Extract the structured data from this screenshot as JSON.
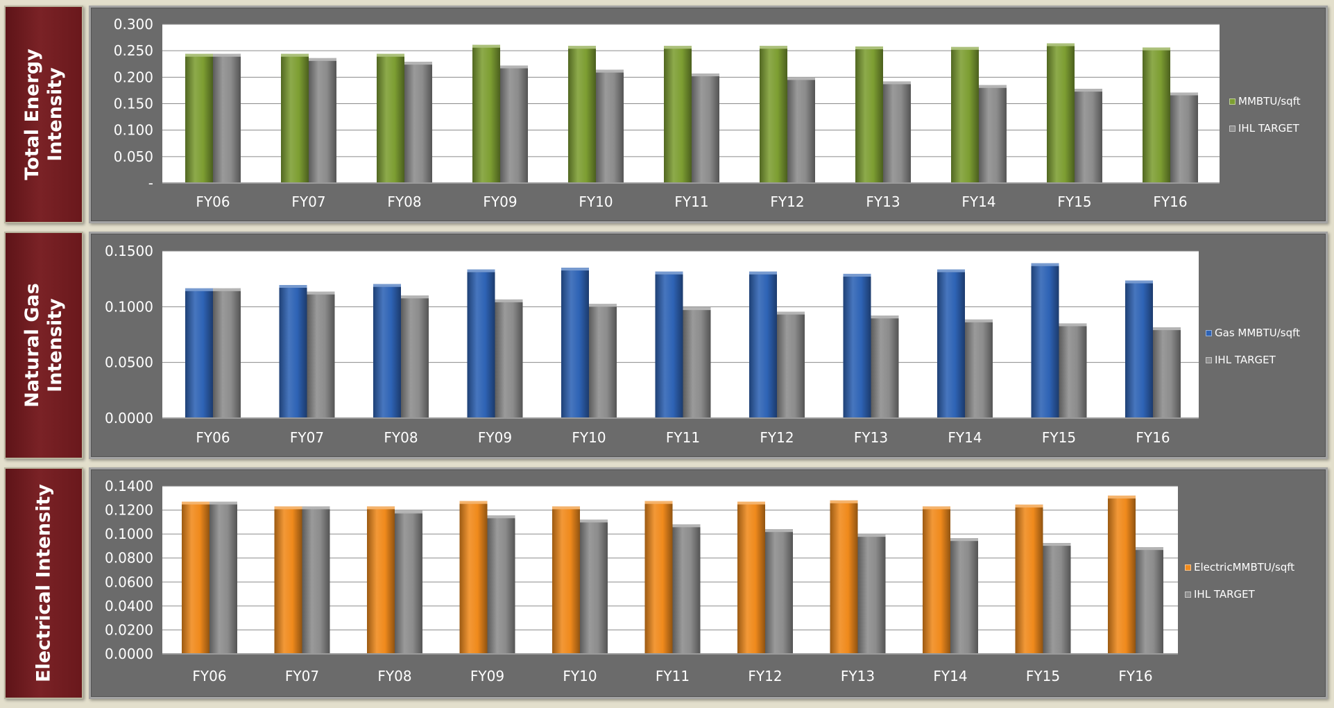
{
  "colors": {
    "background": "#e3dfcc",
    "title_box": "#6a181c",
    "panel": "#6b6b6b",
    "plot_area": "#ffffff",
    "target_series": "#8c8c8c"
  },
  "chart_data": [
    {
      "type": "bar",
      "side_title": [
        "Total Energy",
        "Intensity"
      ],
      "categories": [
        "FY06",
        "FY07",
        "FY08",
        "FY09",
        "FY10",
        "FY11",
        "FY12",
        "FY13",
        "FY14",
        "FY15",
        "FY16"
      ],
      "series": [
        {
          "name": "MMBTU/sqft",
          "color": "#7d9e32",
          "values": [
            0.244,
            0.244,
            0.244,
            0.261,
            0.259,
            0.259,
            0.259,
            0.258,
            0.257,
            0.264,
            0.256
          ]
        },
        {
          "name": "IHL TARGET",
          "color": "#8c8c8c",
          "values": [
            0.244,
            0.236,
            0.229,
            0.222,
            0.214,
            0.207,
            0.2,
            0.192,
            0.185,
            0.178,
            0.171
          ]
        }
      ],
      "yticks": [
        "-",
        "0.050",
        "0.100",
        "0.150",
        "0.200",
        "0.250",
        "0.300"
      ],
      "ylim": [
        0,
        0.3
      ],
      "grid": true,
      "legend_position": "right"
    },
    {
      "type": "bar",
      "side_title": [
        "Natural Gas",
        "Intensity"
      ],
      "categories": [
        "FY06",
        "FY07",
        "FY08",
        "FY09",
        "FY10",
        "FY11",
        "FY12",
        "FY13",
        "FY14",
        "FY15",
        "FY16"
      ],
      "series": [
        {
          "name": "Gas MMBTU/sqft",
          "color": "#2e63b5",
          "values": [
            0.1165,
            0.1195,
            0.1203,
            0.1335,
            0.135,
            0.1315,
            0.1315,
            0.1295,
            0.1335,
            0.139,
            0.1235
          ]
        },
        {
          "name": "IHL TARGET",
          "color": "#8c8c8c",
          "values": [
            0.1165,
            0.1135,
            0.11,
            0.1065,
            0.1025,
            0.0995,
            0.0955,
            0.092,
            0.0885,
            0.085,
            0.0815
          ]
        }
      ],
      "yticks": [
        "0.0000",
        "0.0500",
        "0.1000",
        "0.1500"
      ],
      "ylim": [
        0,
        0.15
      ],
      "grid": true,
      "legend_position": "right"
    },
    {
      "type": "bar",
      "side_title": [
        "Electrical  Intensity"
      ],
      "categories": [
        "FY06",
        "FY07",
        "FY08",
        "FY09",
        "FY10",
        "FY11",
        "FY12",
        "FY13",
        "FY14",
        "FY15",
        "FY16"
      ],
      "series": [
        {
          "name": "ElectricMMBTU/sqft",
          "color": "#f08a1c",
          "values": [
            0.127,
            0.123,
            0.123,
            0.1275,
            0.123,
            0.1275,
            0.127,
            0.128,
            0.123,
            0.1245,
            0.132
          ]
        },
        {
          "name": "IHL TARGET",
          "color": "#8c8c8c",
          "values": [
            0.127,
            0.123,
            0.1195,
            0.1155,
            0.112,
            0.108,
            0.104,
            0.1,
            0.0965,
            0.0925,
            0.089
          ]
        }
      ],
      "yticks": [
        "0.0000",
        "0.0200",
        "0.0400",
        "0.0600",
        "0.0800",
        "0.1000",
        "0.1200",
        "0.1400"
      ],
      "ylim": [
        0,
        0.14
      ],
      "grid": true,
      "legend_position": "right"
    }
  ]
}
